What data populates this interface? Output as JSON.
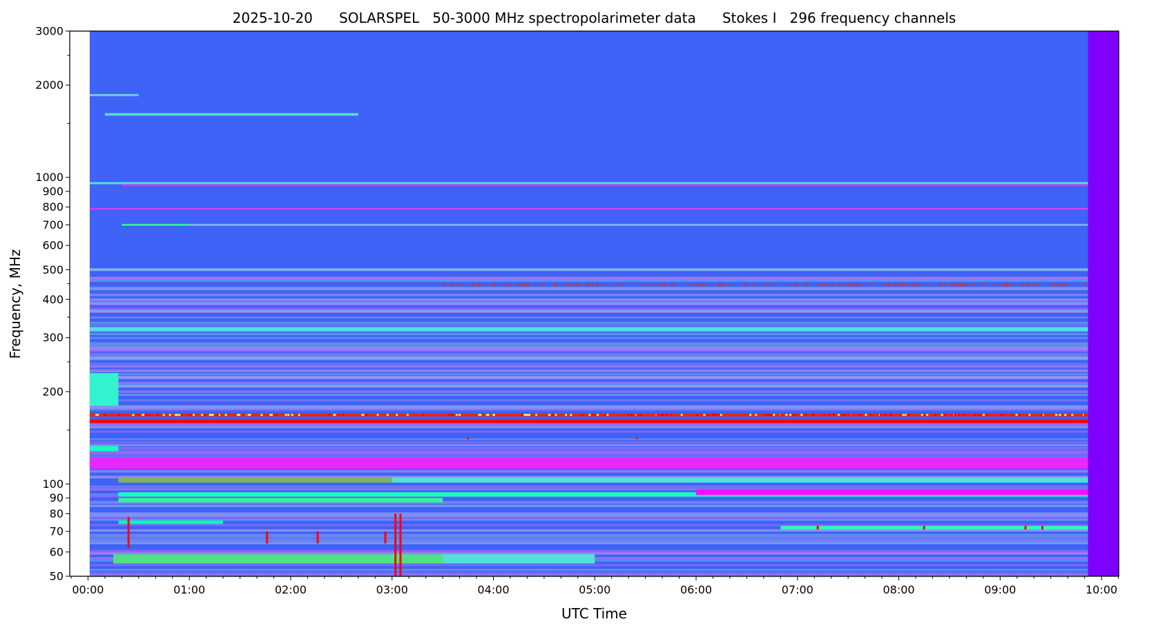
{
  "chart_data": {
    "type": "heatmap",
    "title": "2025-10-20      SOLARSPEL   50-3000 MHz spectropolarimeter data      Stokes I   296 frequency channels",
    "xlabel": "UTC Time",
    "ylabel": "Frequency, MHz",
    "y_scale": "log",
    "ylim": [
      50,
      3000
    ],
    "xlim_hours": [
      -0.18,
      10.17
    ],
    "x_ticks": [
      "00:00",
      "01:00",
      "02:00",
      "03:00",
      "04:00",
      "05:00",
      "06:00",
      "07:00",
      "08:00",
      "09:00",
      "10:00"
    ],
    "x_minor_tick_minutes": 10,
    "y_ticks": [
      50,
      60,
      70,
      80,
      90,
      100,
      200,
      300,
      400,
      500,
      600,
      700,
      800,
      900,
      1000,
      2000,
      3000
    ],
    "y_minor_ticks": [
      150,
      250,
      350,
      450,
      1500,
      2500
    ],
    "colormap": "rainbow",
    "background_color": "#3f62f7",
    "no_data_color": "#ffffff",
    "data_time_range": [
      "00:01",
      "09:52"
    ],
    "grid": false,
    "features": [
      {
        "freq": [
          1590,
          1620
        ],
        "t": [
          "00:10",
          "02:40"
        ],
        "level": 0.35
      },
      {
        "freq": [
          1840,
          1870
        ],
        "t": [
          "00:01",
          "00:30"
        ],
        "level": 0.3
      },
      {
        "freq": [
          950,
          965
        ],
        "t": [
          "00:01",
          "09:52"
        ],
        "level": 0.35
      },
      {
        "freq": [
          935,
          948
        ],
        "t": [
          "00:20",
          "09:52"
        ],
        "level": 0.05
      },
      {
        "freq": [
          785,
          795
        ],
        "t": [
          "00:01",
          "09:52"
        ],
        "level": 0.08
      },
      {
        "freq": [
          695,
          705
        ],
        "t": [
          "00:20",
          "01:00"
        ],
        "level": 0.6
      },
      {
        "freq": [
          695,
          705
        ],
        "t": [
          "01:00",
          "09:52"
        ],
        "level": 0.25
      },
      {
        "freq": [
          495,
          505
        ],
        "t": [
          "00:01",
          "09:52"
        ],
        "level": 0.25
      },
      {
        "freq": [
          315,
          325
        ],
        "t": [
          "00:01",
          "09:52"
        ],
        "level": 0.35
      },
      {
        "freq": [
          180,
          230
        ],
        "t": [
          "00:01",
          "00:18"
        ],
        "level": 0.4
      },
      {
        "freq": [
          166,
          170
        ],
        "t": [
          "00:01",
          "09:52"
        ],
        "level": 0.95
      },
      {
        "freq": [
          158,
          162
        ],
        "t": [
          "00:01",
          "09:52"
        ],
        "level": 1.0
      },
      {
        "freq": [
          128,
          133
        ],
        "t": [
          "00:01",
          "00:18"
        ],
        "level": 0.45
      },
      {
        "freq": [
          112,
          122
        ],
        "t": [
          "00:01",
          "09:52"
        ],
        "level": 0.05
      },
      {
        "freq": [
          101,
          105
        ],
        "t": [
          "00:18",
          "03:00"
        ],
        "level": 0.75
      },
      {
        "freq": [
          101,
          105
        ],
        "t": [
          "03:00",
          "09:52"
        ],
        "level": 0.35
      },
      {
        "freq": [
          91,
          94
        ],
        "t": [
          "00:18",
          "09:52"
        ],
        "level": 0.45
      },
      {
        "freq": [
          87,
          90
        ],
        "t": [
          "00:18",
          "03:30"
        ],
        "level": 0.6
      },
      {
        "freq": [
          92,
          96
        ],
        "t": [
          "06:00",
          "09:52"
        ],
        "level": 0.02
      },
      {
        "freq": [
          74,
          76
        ],
        "t": [
          "00:18",
          "01:20"
        ],
        "level": 0.5
      },
      {
        "freq": [
          71,
          73
        ],
        "t": [
          "06:50",
          "09:52"
        ],
        "level": 0.4
      },
      {
        "freq": [
          55,
          59
        ],
        "t": [
          "00:15",
          "03:30"
        ],
        "level": 0.65
      },
      {
        "freq": [
          55,
          59
        ],
        "t": [
          "03:30",
          "05:00"
        ],
        "level": 0.35
      },
      {
        "freq": [
          50,
          3000
        ],
        "t": [
          "09:52",
          "10:10"
        ],
        "level": 0.0
      }
    ],
    "bursts": [
      {
        "t": "00:24",
        "freq": [
          62,
          78
        ]
      },
      {
        "t": "01:46",
        "freq": [
          64,
          70
        ]
      },
      {
        "t": "02:16",
        "freq": [
          64,
          70
        ]
      },
      {
        "t": "02:56",
        "freq": [
          64,
          70
        ]
      },
      {
        "t": "03:02",
        "freq": [
          50,
          80
        ]
      },
      {
        "t": "03:05",
        "freq": [
          50,
          80
        ]
      },
      {
        "t": "07:12",
        "freq": [
          71,
          73
        ]
      },
      {
        "t": "08:15",
        "freq": [
          71,
          73
        ]
      },
      {
        "t": "09:15",
        "freq": [
          71,
          73
        ]
      },
      {
        "t": "09:25",
        "freq": [
          71,
          73
        ]
      },
      {
        "t": "03:45",
        "freq": [
          140,
          142
        ]
      },
      {
        "t": "05:25",
        "freq": [
          140,
          142
        ]
      }
    ]
  }
}
